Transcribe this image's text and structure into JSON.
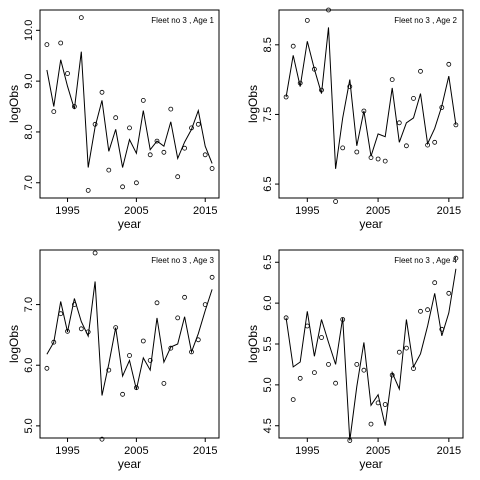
{
  "chart_data": [
    {
      "type": "line",
      "title": "Fleet no 3 , Age 1",
      "xlabel": "year",
      "ylabel": "logObs",
      "xlim": [
        1991,
        2017
      ],
      "ylim": [
        6.7,
        10.4
      ],
      "xticks": [
        "1995",
        "2005",
        "2015"
      ],
      "yticks": [
        "7.0",
        "8.0",
        "9.0",
        "10.0"
      ],
      "series": [
        {
          "kind": "points",
          "x": [
            1992,
            1993,
            1994,
            1995,
            1996,
            1997,
            1998,
            1999,
            2000,
            2001,
            2002,
            2003,
            2004,
            2005,
            2006,
            2007,
            2008,
            2009,
            2010,
            2011,
            2012,
            2013,
            2014,
            2015,
            2016
          ],
          "y": [
            9.72,
            8.4,
            9.75,
            9.15,
            8.5,
            10.25,
            6.85,
            8.15,
            8.78,
            7.25,
            8.28,
            6.92,
            8.08,
            7.0,
            8.62,
            7.55,
            7.82,
            7.6,
            8.45,
            7.12,
            7.68,
            8.08,
            8.15,
            7.55,
            7.28
          ]
        },
        {
          "kind": "line",
          "x": [
            1992,
            1993,
            1994,
            1995,
            1996,
            1997,
            1998,
            1999,
            2000,
            2001,
            2002,
            2003,
            2004,
            2005,
            2006,
            2007,
            2008,
            2009,
            2010,
            2011,
            2012,
            2013,
            2014,
            2015,
            2016
          ],
          "y": [
            9.22,
            8.5,
            9.42,
            8.9,
            8.45,
            9.58,
            7.3,
            8.1,
            8.62,
            7.62,
            8.05,
            7.3,
            7.85,
            7.58,
            8.42,
            7.65,
            7.82,
            7.72,
            8.2,
            7.48,
            7.8,
            8.05,
            8.42,
            7.72,
            7.38
          ]
        }
      ]
    },
    {
      "type": "line",
      "title": "Fleet no 3 , Age 2",
      "xlabel": "year",
      "ylabel": "logObs",
      "xlim": [
        1991,
        2017
      ],
      "ylim": [
        6.3,
        9.0
      ],
      "xticks": [
        "1995",
        "2005",
        "2015"
      ],
      "yticks": [
        "6.5",
        "7.5",
        "8.5"
      ],
      "series": [
        {
          "kind": "points",
          "x": [
            1992,
            1993,
            1994,
            1995,
            1996,
            1997,
            1998,
            1999,
            2000,
            2001,
            2002,
            2003,
            2004,
            2005,
            2006,
            2007,
            2008,
            2009,
            2010,
            2011,
            2012,
            2013,
            2014,
            2015,
            2016
          ],
          "y": [
            7.75,
            8.48,
            7.95,
            8.85,
            8.15,
            7.85,
            9.0,
            6.25,
            7.02,
            7.9,
            6.96,
            7.55,
            6.88,
            6.86,
            6.83,
            8.0,
            7.38,
            7.05,
            7.73,
            8.12,
            7.06,
            7.1,
            7.6,
            8.22,
            7.35
          ]
        },
        {
          "kind": "line",
          "x": [
            1992,
            1993,
            1994,
            1995,
            1996,
            1997,
            1998,
            1999,
            2000,
            2001,
            2002,
            2003,
            2004,
            2005,
            2006,
            2007,
            2008,
            2009,
            2010,
            2011,
            2012,
            2013,
            2014,
            2015,
            2016
          ],
          "y": [
            7.75,
            8.35,
            7.9,
            8.55,
            8.15,
            7.8,
            8.75,
            6.72,
            7.45,
            8.0,
            7.05,
            7.55,
            6.9,
            7.22,
            7.18,
            7.88,
            7.1,
            7.38,
            7.45,
            7.8,
            7.08,
            7.3,
            7.62,
            8.05,
            7.35
          ]
        }
      ]
    },
    {
      "type": "line",
      "title": "Fleet no 3 , Age 3",
      "xlabel": "year",
      "ylabel": "logObs",
      "xlim": [
        1991,
        2017
      ],
      "ylim": [
        4.8,
        7.9
      ],
      "xticks": [
        "1995",
        "2005",
        "2015"
      ],
      "yticks": [
        "5.0",
        "6.0",
        "7.0"
      ],
      "series": [
        {
          "kind": "points",
          "x": [
            1992,
            1993,
            1994,
            1995,
            1996,
            1997,
            1998,
            1999,
            2000,
            2001,
            2002,
            2003,
            2004,
            2005,
            2006,
            2007,
            2008,
            2009,
            2010,
            2011,
            2012,
            2013,
            2014,
            2015,
            2016
          ],
          "y": [
            5.95,
            6.38,
            6.85,
            6.56,
            7.0,
            6.6,
            6.55,
            7.85,
            4.78,
            5.92,
            6.62,
            5.52,
            6.16,
            5.63,
            6.4,
            6.08,
            7.03,
            5.7,
            6.28,
            6.78,
            7.12,
            6.22,
            6.42,
            7.0,
            7.45
          ]
        },
        {
          "kind": "line",
          "x": [
            1992,
            1993,
            1994,
            1995,
            1996,
            1997,
            1998,
            1999,
            2000,
            2001,
            2002,
            2003,
            2004,
            2005,
            2006,
            2007,
            2008,
            2009,
            2010,
            2011,
            2012,
            2013,
            2014,
            2015,
            2016
          ],
          "y": [
            6.18,
            6.38,
            7.05,
            6.55,
            7.1,
            6.72,
            6.48,
            7.38,
            5.5,
            6.02,
            6.62,
            5.82,
            6.08,
            5.6,
            6.12,
            5.92,
            6.78,
            6.05,
            6.3,
            6.35,
            6.8,
            6.22,
            6.52,
            6.9,
            7.25
          ]
        }
      ]
    },
    {
      "type": "line",
      "title": "Fleet no 3 , Age 4",
      "xlabel": "year",
      "ylabel": "logObs",
      "xlim": [
        1991,
        2017
      ],
      "ylim": [
        4.35,
        6.65
      ],
      "xticks": [
        "1995",
        "2005",
        "2015"
      ],
      "yticks": [
        "4.5",
        "5.0",
        "5.5",
        "6.0",
        "6.5"
      ],
      "series": [
        {
          "kind": "points",
          "x": [
            1992,
            1993,
            1994,
            1995,
            1996,
            1997,
            1998,
            1999,
            2000,
            2001,
            2002,
            2003,
            2004,
            2005,
            2006,
            2007,
            2008,
            2009,
            2010,
            2011,
            2012,
            2013,
            2014,
            2015,
            2016
          ],
          "y": [
            5.82,
            4.82,
            5.08,
            5.72,
            5.15,
            5.58,
            5.25,
            5.02,
            5.8,
            4.32,
            5.25,
            5.18,
            4.52,
            4.78,
            4.76,
            5.12,
            5.4,
            5.45,
            5.2,
            5.9,
            5.92,
            6.25,
            5.68,
            6.12,
            6.55
          ]
        },
        {
          "kind": "line",
          "x": [
            1992,
            1993,
            1994,
            1995,
            1996,
            1997,
            1998,
            1999,
            2000,
            2001,
            2002,
            2003,
            2004,
            2005,
            2006,
            2007,
            2008,
            2009,
            2010,
            2011,
            2012,
            2013,
            2014,
            2015,
            2016
          ],
          "y": [
            5.82,
            5.22,
            5.28,
            5.9,
            5.35,
            5.8,
            5.52,
            5.25,
            5.82,
            4.32,
            4.98,
            5.52,
            4.75,
            4.88,
            4.5,
            5.15,
            4.95,
            5.8,
            5.22,
            5.38,
            5.72,
            6.12,
            5.6,
            5.88,
            6.42
          ]
        }
      ]
    }
  ]
}
